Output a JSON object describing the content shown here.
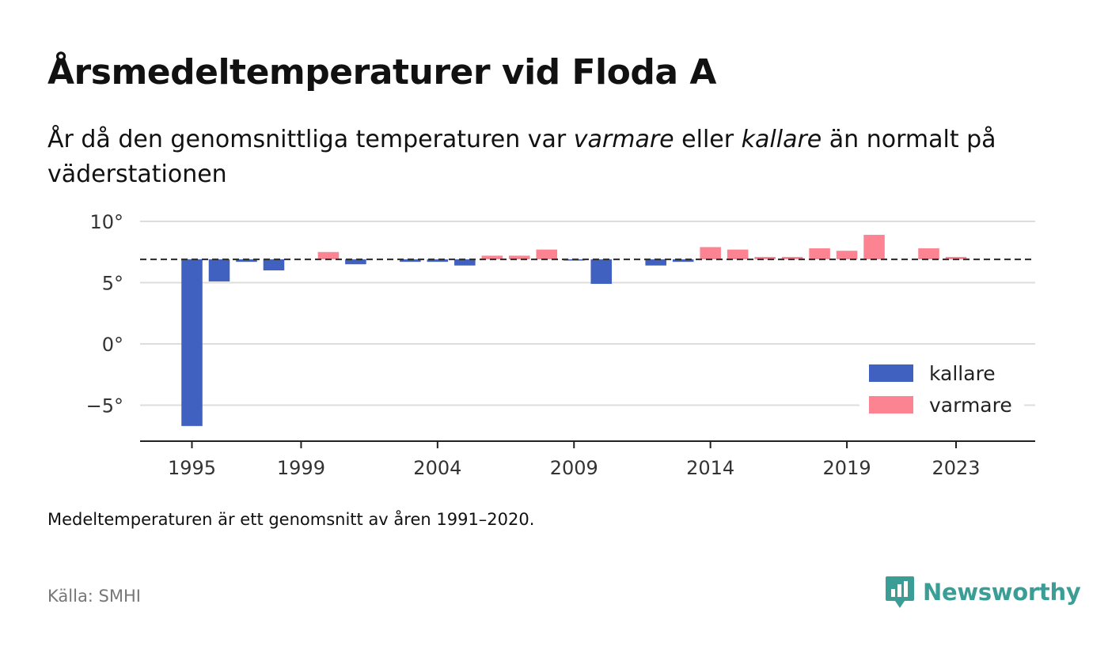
{
  "title": "Årsmedeltemperaturer vid Floda A",
  "subtitle": {
    "part1": "År då den genomsnittliga temperaturen var ",
    "em1": "varmare",
    "part2": " eller ",
    "em2": "kallare",
    "part3": " än normalt på väderstationen"
  },
  "note": "Medeltemperaturen är ett genomsnitt av åren 1991–2020.",
  "source": "Källa: SMHI",
  "brand": "Newsworthy",
  "colors": {
    "colder": "#4061c0",
    "warmer": "#fc8391",
    "brand": "#3a9d96",
    "grid": "#dddddd",
    "axis": "#222222"
  },
  "chart_data": {
    "type": "bar",
    "baseline": 6.9,
    "ylim": [
      -8,
      10.5
    ],
    "yticks": [
      {
        "value": 10,
        "label": "10°"
      },
      {
        "value": 5,
        "label": "5°"
      },
      {
        "value": 0,
        "label": "0°"
      },
      {
        "value": -5,
        "label": "−5°"
      }
    ],
    "xticks": [
      {
        "value": 1995,
        "label": "1995"
      },
      {
        "value": 1999,
        "label": "1999"
      },
      {
        "value": 2004,
        "label": "2004"
      },
      {
        "value": 2009,
        "label": "2009"
      },
      {
        "value": 2014,
        "label": "2014"
      },
      {
        "value": 2019,
        "label": "2019"
      },
      {
        "value": 2023,
        "label": "2023"
      }
    ],
    "xlim": [
      1993.1,
      2025.9
    ],
    "legend": {
      "position": "bottom-right",
      "items": [
        {
          "key": "colder",
          "label": "kallare"
        },
        {
          "key": "warmer",
          "label": "varmare"
        }
      ]
    },
    "grid": true,
    "data": [
      {
        "year": 1995,
        "value": -6.7
      },
      {
        "year": 1996,
        "value": 5.1
      },
      {
        "year": 1997,
        "value": 6.7
      },
      {
        "year": 1998,
        "value": 6.0
      },
      {
        "year": 2000,
        "value": 7.5
      },
      {
        "year": 2001,
        "value": 6.5
      },
      {
        "year": 2003,
        "value": 6.7
      },
      {
        "year": 2004,
        "value": 6.7
      },
      {
        "year": 2005,
        "value": 6.4
      },
      {
        "year": 2006,
        "value": 7.2
      },
      {
        "year": 2007,
        "value": 7.2
      },
      {
        "year": 2008,
        "value": 7.7
      },
      {
        "year": 2009,
        "value": 6.8
      },
      {
        "year": 2010,
        "value": 4.9
      },
      {
        "year": 2012,
        "value": 6.4
      },
      {
        "year": 2013,
        "value": 6.7
      },
      {
        "year": 2014,
        "value": 7.9
      },
      {
        "year": 2015,
        "value": 7.7
      },
      {
        "year": 2016,
        "value": 7.1
      },
      {
        "year": 2017,
        "value": 7.1
      },
      {
        "year": 2018,
        "value": 7.8
      },
      {
        "year": 2019,
        "value": 7.6
      },
      {
        "year": 2020,
        "value": 8.9
      },
      {
        "year": 2022,
        "value": 7.8
      },
      {
        "year": 2023,
        "value": 7.1
      }
    ]
  }
}
